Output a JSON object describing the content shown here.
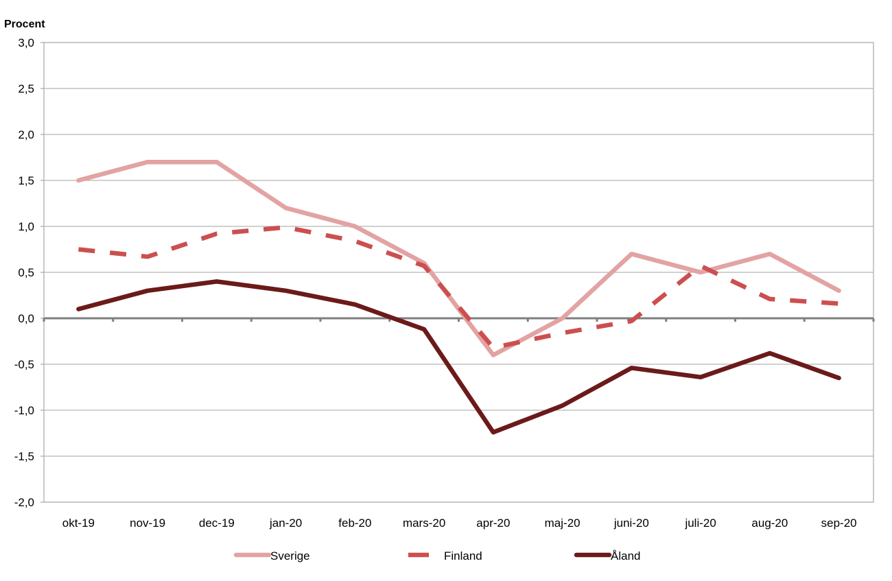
{
  "chart_data": {
    "type": "line",
    "ylabel": "Procent",
    "xlabel": "",
    "ylim": [
      -2.0,
      3.0
    ],
    "yticks": [
      "3,0",
      "2,5",
      "2,0",
      "1,5",
      "1,0",
      "0,5",
      "0,0",
      "-0,5",
      "-1,0",
      "-1,5",
      "-2,0"
    ],
    "categories": [
      "okt-19",
      "nov-19",
      "dec-19",
      "jan-20",
      "feb-20",
      "mars-20",
      "apr-20",
      "maj-20",
      "juni-20",
      "juli-20",
      "aug-20",
      "sep-20"
    ],
    "grid": true,
    "legend_position": "bottom",
    "series": [
      {
        "name": "Sverige",
        "color": "#e3a3a3",
        "style": "solid",
        "values": [
          1.5,
          1.7,
          1.7,
          1.2,
          1.0,
          0.6,
          -0.4,
          0.0,
          0.7,
          0.5,
          0.7,
          0.3
        ]
      },
      {
        "name": "Finland",
        "color": "#cc4f4f",
        "style": "dashed",
        "values": [
          0.75,
          0.67,
          0.92,
          0.99,
          0.84,
          0.57,
          -0.32,
          -0.16,
          -0.03,
          0.57,
          0.21,
          0.16
        ]
      },
      {
        "name": "Åland",
        "color": "#6b1a1a",
        "style": "solid",
        "values": [
          0.1,
          0.3,
          0.4,
          0.3,
          0.15,
          -0.12,
          -1.24,
          -0.95,
          -0.54,
          -0.64,
          -0.38,
          -0.65
        ]
      }
    ]
  }
}
